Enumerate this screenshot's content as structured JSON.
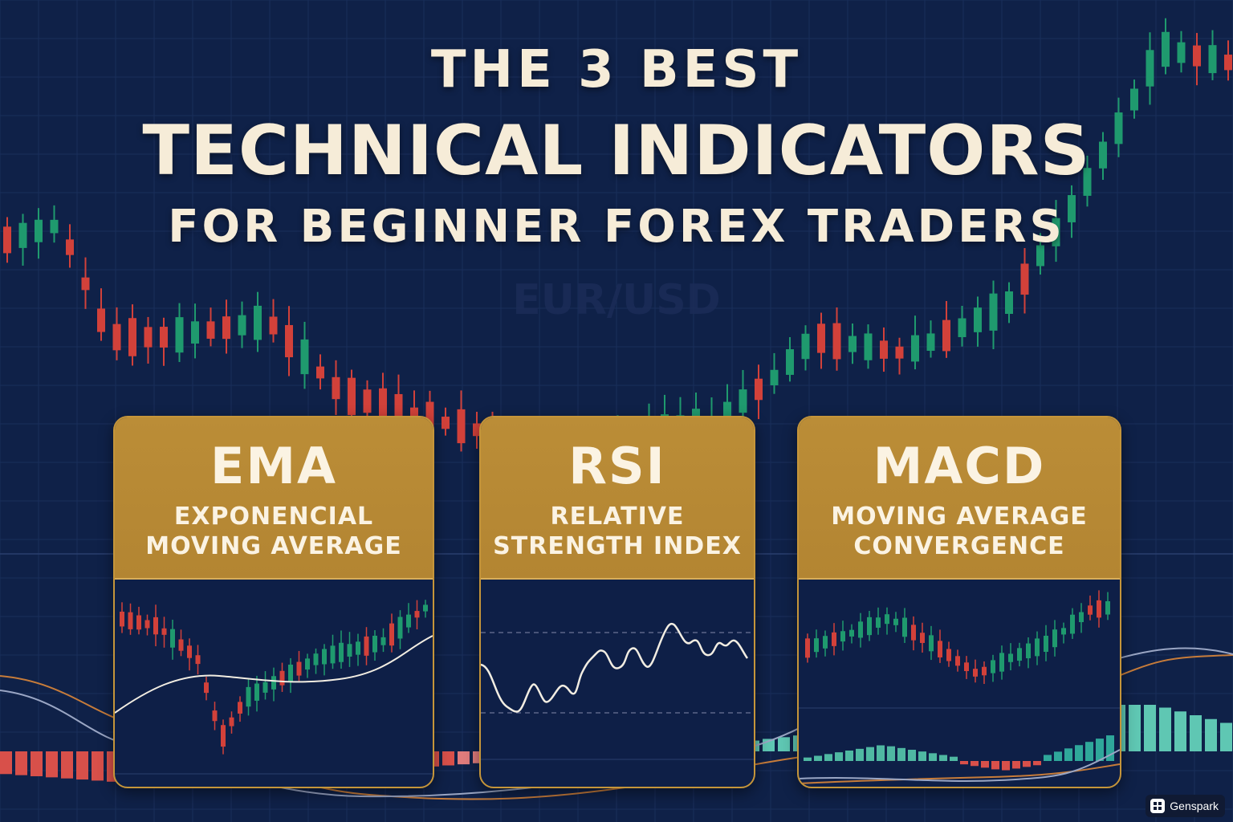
{
  "title": {
    "line1": "THE 3 BEST",
    "line2": "TECHNICAL INDICATORS",
    "line3": "FOR BEGINNER FOREX TRADERS"
  },
  "pair_label": "EUR/USD",
  "cards": [
    {
      "abbr": "EMA",
      "full_line1": "EXPONENCIAL",
      "full_line2": "MOVING AVERAGE",
      "chart_icon": "candlestick-with-ema-line"
    },
    {
      "abbr": "RSI",
      "full_line1": "RELATIVE",
      "full_line2": "STRENGTH INDEX",
      "chart_icon": "oscillator-line-with-bands"
    },
    {
      "abbr": "MACD",
      "full_line1": "MOVING AVERAGE",
      "full_line2": "CONVERGENCE",
      "chart_icon": "candlestick-with-histogram"
    }
  ],
  "watermark": {
    "label": "Genspark",
    "icon": "genspark-logo-icon"
  },
  "colors": {
    "background": "#0f2148",
    "gold": "#b8893a",
    "bull": "#1f9a6e",
    "bear": "#d2413a",
    "title_text": "#f6ecd8"
  }
}
